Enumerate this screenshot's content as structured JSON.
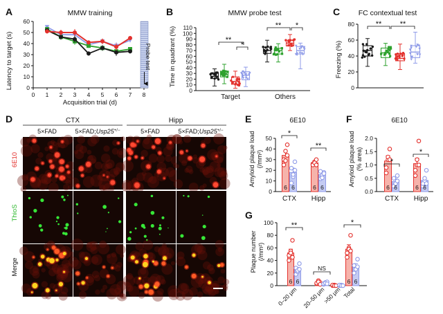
{
  "colors": {
    "black": "#1a1a1a",
    "green": "#2ea12e",
    "red": "#e3312d",
    "blue": "#8f9be8",
    "red_fill": "#f6b3ab",
    "blue_fill": "#c4cbf3",
    "micro_bg": "#160704"
  },
  "panelA": {
    "letter": "A",
    "title": "MMW  training",
    "ylabel": "Latency to target (s)",
    "xlabel": "Acquisition trial (d)",
    "probe_label": "Probe test",
    "yticks": [
      "0",
      "10",
      "20",
      "30",
      "40",
      "50",
      "60"
    ],
    "xticks": [
      "0",
      "1",
      "2",
      "3",
      "4",
      "5",
      "6",
      "7",
      "8"
    ]
  },
  "panelB": {
    "letter": "B",
    "title": "MMW  probe test",
    "ylabel": "Time in quadrant (%)",
    "yticks": [
      "0",
      "10",
      "20",
      "30",
      "40",
      "50",
      "60",
      "70",
      "80",
      "90",
      "100",
      "110"
    ],
    "groups": [
      "Target",
      "Others"
    ],
    "sig_target_1": "**",
    "sig_target_2": "*",
    "sig_others_1": "**",
    "sig_others_2": "*"
  },
  "panelC": {
    "letter": "C",
    "title": "FC contextual test",
    "ylabel": "Freezing (%)",
    "yticks": [
      "0",
      "20",
      "40",
      "60",
      "80"
    ],
    "sig_1": "**",
    "sig_2": "**"
  },
  "panelD": {
    "letter": "D",
    "region_ctx": "CTX",
    "region_hipp": "Hipp",
    "col_5xfad": "5×FAD",
    "col_usp_prefix": "5×FAD;",
    "col_usp_gene": "Usp25",
    "col_usp_sup": "+/−",
    "row_6e10": "6E10",
    "row_thios": "ThioS",
    "row_merge": "Merge"
  },
  "panelE": {
    "letter": "E",
    "title": "6E10",
    "ylabel_1": "Amyloid plaque load",
    "ylabel_2": "(/mm²)",
    "yticks": [
      "0",
      "10",
      "20",
      "30",
      "40",
      "50"
    ],
    "categories": [
      "CTX",
      "Hipp"
    ],
    "n": "6",
    "sig_ctx": "*",
    "sig_hipp": "**"
  },
  "panelF": {
    "letter": "F",
    "title": "6E10",
    "ylabel_1": "Amyloid plaque load",
    "ylabel_2": "(% area)",
    "yticks": [
      "0.0",
      "0.5",
      "1.0",
      "1.5",
      "2.0"
    ],
    "categories": [
      "CTX",
      "Hipp"
    ],
    "n": "6",
    "sig_ctx": "*",
    "sig_hipp": "*"
  },
  "panelG": {
    "letter": "G",
    "ylabel_1": "Plaque number",
    "ylabel_2": "(/mm²)",
    "yticks": [
      "0",
      "20",
      "40",
      "60",
      "80",
      "100"
    ],
    "categories": [
      "0–20 μm",
      "20–50 μm",
      ">50 μm",
      "Total"
    ],
    "n": "6",
    "sig_1": "**",
    "sig_2": "NS",
    "sig_4": "*"
  },
  "chart_data": [
    {
      "type": "line",
      "panel": "A",
      "title": "MMW  training",
      "xlabel": "Acquisition trial (d)",
      "ylabel": "Latency to target (s)",
      "xlim": [
        0,
        8
      ],
      "ylim": [
        0,
        60
      ],
      "x": [
        1,
        2,
        3,
        4,
        5,
        6,
        7
      ],
      "series": [
        {
          "color": "black",
          "values": [
            52,
            46,
            44,
            31,
            36,
            32,
            33
          ]
        },
        {
          "color": "green",
          "values": [
            53,
            46,
            42,
            38,
            36,
            33,
            35
          ]
        },
        {
          "color": "red",
          "values": [
            51,
            50,
            50,
            41,
            42,
            37,
            45
          ]
        },
        {
          "color": "blue",
          "values": [
            55,
            48,
            48,
            39,
            42,
            38,
            43
          ]
        }
      ]
    },
    {
      "type": "box",
      "panel": "B",
      "title": "MMW  probe test",
      "ylabel": "Time in quadrant (%)",
      "ylim": [
        0,
        110
      ],
      "categories": [
        "Target",
        "Others"
      ],
      "series": [
        {
          "color": "black",
          "values": [
            {
              "min": 8,
              "q1": 21,
              "med": 25,
              "q3": 31,
              "max": 38
            },
            {
              "min": 50,
              "q1": 65,
              "med": 70,
              "q3": 76,
              "max": 88
            }
          ]
        },
        {
          "color": "green",
          "values": [
            {
              "min": 12,
              "q1": 24,
              "med": 28,
              "q3": 34,
              "max": 46
            },
            {
              "min": 50,
              "q1": 64,
              "med": 70,
              "q3": 74,
              "max": 82
            }
          ]
        },
        {
          "color": "red",
          "values": [
            {
              "min": 4,
              "q1": 11,
              "med": 16,
              "q3": 24,
              "max": 34
            },
            {
              "min": 70,
              "q1": 78,
              "med": 83,
              "q3": 88,
              "max": 98
            }
          ]
        },
        {
          "color": "blue",
          "values": [
            {
              "min": 7,
              "q1": 19,
              "med": 27,
              "q3": 33,
              "max": 41
            },
            {
              "min": 38,
              "q1": 64,
              "med": 70,
              "q3": 77,
              "max": 83
            }
          ]
        }
      ]
    },
    {
      "type": "box",
      "panel": "C",
      "title": "FC contextual test",
      "ylabel": "Freezing (%)",
      "ylim": [
        0,
        80
      ],
      "series": [
        {
          "color": "black",
          "values": [
            {
              "min": 27,
              "q1": 40,
              "med": 47,
              "q3": 53,
              "max": 62
            }
          ]
        },
        {
          "color": "green",
          "values": [
            {
              "min": 28,
              "q1": 38,
              "med": 44,
              "q3": 50,
              "max": 56
            }
          ]
        },
        {
          "color": "red",
          "values": [
            {
              "min": 23,
              "q1": 34,
              "med": 37,
              "q3": 43,
              "max": 55
            }
          ]
        },
        {
          "color": "blue",
          "values": [
            {
              "min": 31,
              "q1": 38,
              "med": 45,
              "q3": 53,
              "max": 70
            }
          ]
        }
      ]
    },
    {
      "type": "bar",
      "panel": "E",
      "title": "6E10",
      "ylabel": "Amyloid plaque load (/mm²)",
      "ylim": [
        0,
        50
      ],
      "categories": [
        "CTX",
        "Hipp"
      ],
      "series": [
        {
          "color": "red",
          "values": [
            34,
            27
          ],
          "errors": [
            4,
            2
          ],
          "points": [
            [
              30,
              38,
              44,
              25,
              29,
              34
            ],
            [
              26,
              28,
              30,
              25,
              27,
              25
            ]
          ]
        },
        {
          "color": "blue",
          "values": [
            18,
            16
          ],
          "errors": [
            4,
            2
          ],
          "points": [
            [
              8,
              14,
              28,
              22,
              16,
              20
            ],
            [
              12,
              15,
              18,
              19,
              13,
              17
            ]
          ]
        }
      ]
    },
    {
      "type": "bar",
      "panel": "F",
      "title": "6E10",
      "ylabel": "Amyloid plaque load (% area)",
      "ylim": [
        0,
        2.0
      ],
      "categories": [
        "CTX",
        "Hipp"
      ],
      "series": [
        {
          "color": "red",
          "values": [
            1.15,
            1.05
          ],
          "errors": [
            0.2,
            0.2
          ],
          "points": [
            [
              0.9,
              1.2,
              1.6,
              0.7,
              1.3,
              1.2
            ],
            [
              0.6,
              1.0,
              1.9,
              0.8,
              1.2,
              1.0
            ]
          ]
        },
        {
          "color": "blue",
          "values": [
            0.38,
            0.42
          ],
          "errors": [
            0.1,
            0.1
          ],
          "points": [
            [
              0.2,
              0.3,
              0.6,
              0.5,
              0.3,
              0.4
            ],
            [
              0.2,
              0.4,
              0.8,
              0.3,
              0.5,
              0.3
            ]
          ]
        }
      ]
    },
    {
      "type": "bar",
      "panel": "G",
      "ylabel": "Plaque number (/mm²)",
      "ylim": [
        0,
        100
      ],
      "categories": [
        "0–20 μm",
        "20–50 μm",
        ">50 μm",
        "Total"
      ],
      "series": [
        {
          "color": "red",
          "values": [
            52,
            5,
            1,
            58
          ],
          "errors": [
            6,
            2,
            0,
            7
          ],
          "points": [
            [
              40,
              55,
              72,
              48,
              52,
              45
            ],
            [
              3,
              8,
              5,
              4,
              6,
              2
            ],
            [
              0,
              1,
              0,
              1,
              0,
              0
            ],
            [
              45,
              60,
              80,
              52,
              58,
              55
            ]
          ]
        },
        {
          "color": "blue",
          "values": [
            25,
            4,
            1,
            30
          ],
          "errors": [
            4,
            1,
            0,
            5
          ],
          "points": [
            [
              18,
              22,
              35,
              28,
              24,
              26
            ],
            [
              2,
              5,
              6,
              3,
              4,
              3
            ],
            [
              0,
              1,
              0,
              1,
              0,
              0
            ],
            [
              20,
              28,
              42,
              32,
              26,
              30
            ]
          ]
        }
      ]
    }
  ]
}
